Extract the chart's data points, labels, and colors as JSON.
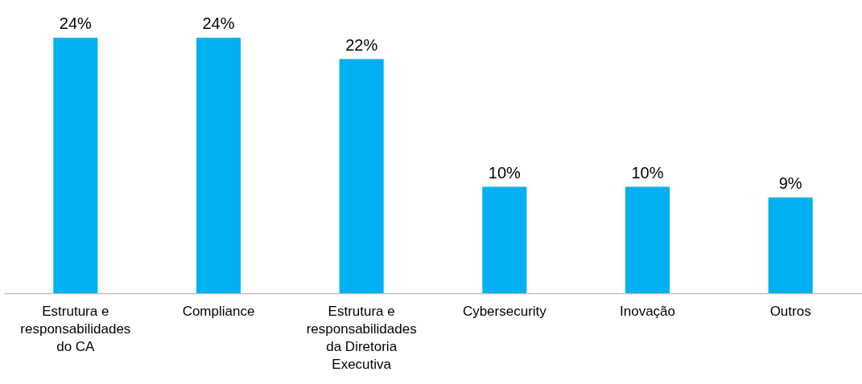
{
  "chart_data": {
    "type": "bar",
    "categories": [
      "Estrutura e responsabilidades do CA",
      "Compliance",
      "Estrutura e responsabilidades da Diretoria Executiva",
      "Cybersecurity",
      "Inovação",
      "Outros"
    ],
    "values": [
      24,
      24,
      22,
      10,
      10,
      9
    ],
    "value_labels": [
      "24%",
      "24%",
      "22%",
      "10%",
      "10%",
      "9%"
    ],
    "color": "#00b0f0"
  }
}
